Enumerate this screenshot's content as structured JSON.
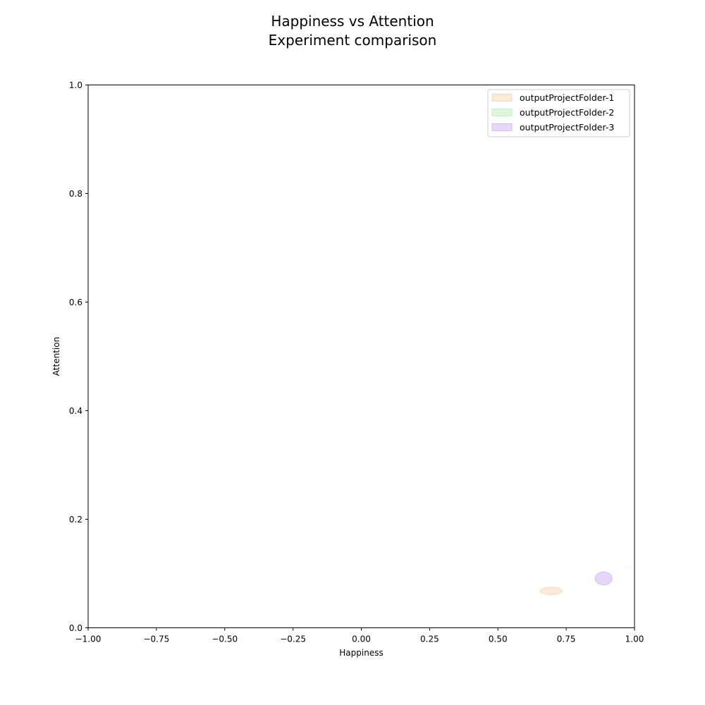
{
  "chart_data": {
    "type": "scatter",
    "title": "Happiness vs Attention",
    "subtitle": "Experiment comparison",
    "xlabel": "Happiness",
    "ylabel": "Attention",
    "xlim": [
      -1.0,
      1.0
    ],
    "ylim": [
      0.0,
      1.0
    ],
    "x_ticks": [
      -1.0,
      -0.75,
      -0.5,
      -0.25,
      0.0,
      0.25,
      0.5,
      0.75,
      1.0
    ],
    "x_tick_labels": [
      "−1.00",
      "−0.75",
      "−0.50",
      "−0.25",
      "0.00",
      "0.25",
      "0.50",
      "0.75",
      "1.00"
    ],
    "y_ticks": [
      0.0,
      0.2,
      0.4,
      0.6,
      0.8,
      1.0
    ],
    "y_tick_labels": [
      "0.0",
      "0.2",
      "0.4",
      "0.6",
      "0.8",
      "1.0"
    ],
    "grid": false,
    "legend_position": "top-right",
    "series": [
      {
        "name": "outputProjectFolder-1",
        "color": "#f5dcc0",
        "ellipses": [
          {
            "cx": 0.695,
            "cy": 0.068,
            "rx": 0.04,
            "ry": 0.007
          }
        ]
      },
      {
        "name": "outputProjectFolder-2",
        "color": "#c4f2c4",
        "ellipses": []
      },
      {
        "name": "outputProjectFolder-3",
        "color": "#d6bcf3",
        "ellipses": [
          {
            "cx": 0.887,
            "cy": 0.091,
            "rx": 0.031,
            "ry": 0.012
          }
        ]
      }
    ],
    "extra_marks": [
      {
        "cx": 0.97,
        "cy": 0.11,
        "rx": 0.002,
        "ry": 0.001,
        "color": "#f5dcc0"
      }
    ]
  }
}
